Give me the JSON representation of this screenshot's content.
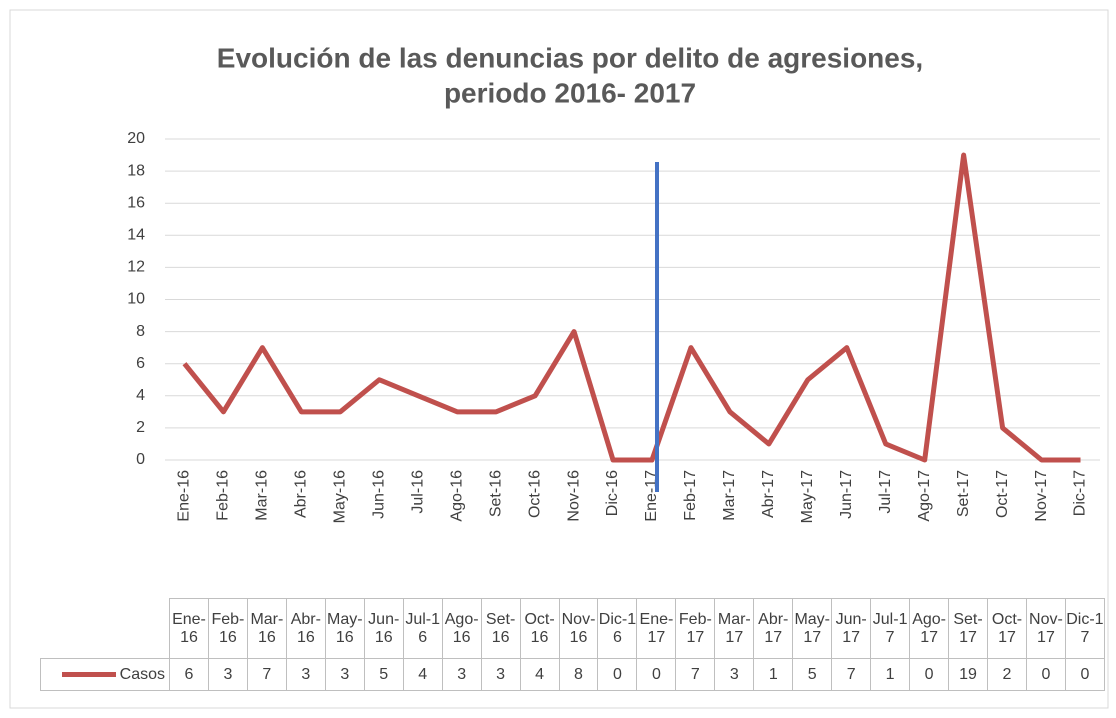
{
  "chart_data": {
    "type": "line",
    "title": "Evolución de las denuncias por delito de agresiones,",
    "subtitle": "periodo 2016- 2017",
    "categories": [
      "Ene-16",
      "Feb-16",
      "Mar-16",
      "Abr-16",
      "May-16",
      "Jun-16",
      "Jul-16",
      "Ago-16",
      "Set-16",
      "Oct-16",
      "Nov-16",
      "Dic-16",
      "Ene-17",
      "Feb-17",
      "Mar-17",
      "Abr-17",
      "May-17",
      "Jun-17",
      "Jul-17",
      "Ago-17",
      "Set-17",
      "Oct-17",
      "Nov-17",
      "Dic-17"
    ],
    "series": [
      {
        "name": "Casos",
        "color": "#c0504d",
        "values": [
          6,
          3,
          7,
          3,
          3,
          5,
          4,
          3,
          3,
          4,
          8,
          0,
          0,
          7,
          3,
          1,
          5,
          7,
          1,
          0,
          19,
          2,
          0,
          0
        ]
      }
    ],
    "ylim": [
      0,
      20
    ],
    "yticks": [
      0,
      2,
      4,
      6,
      8,
      10,
      12,
      14,
      16,
      18,
      20
    ],
    "grid": true
  }
}
